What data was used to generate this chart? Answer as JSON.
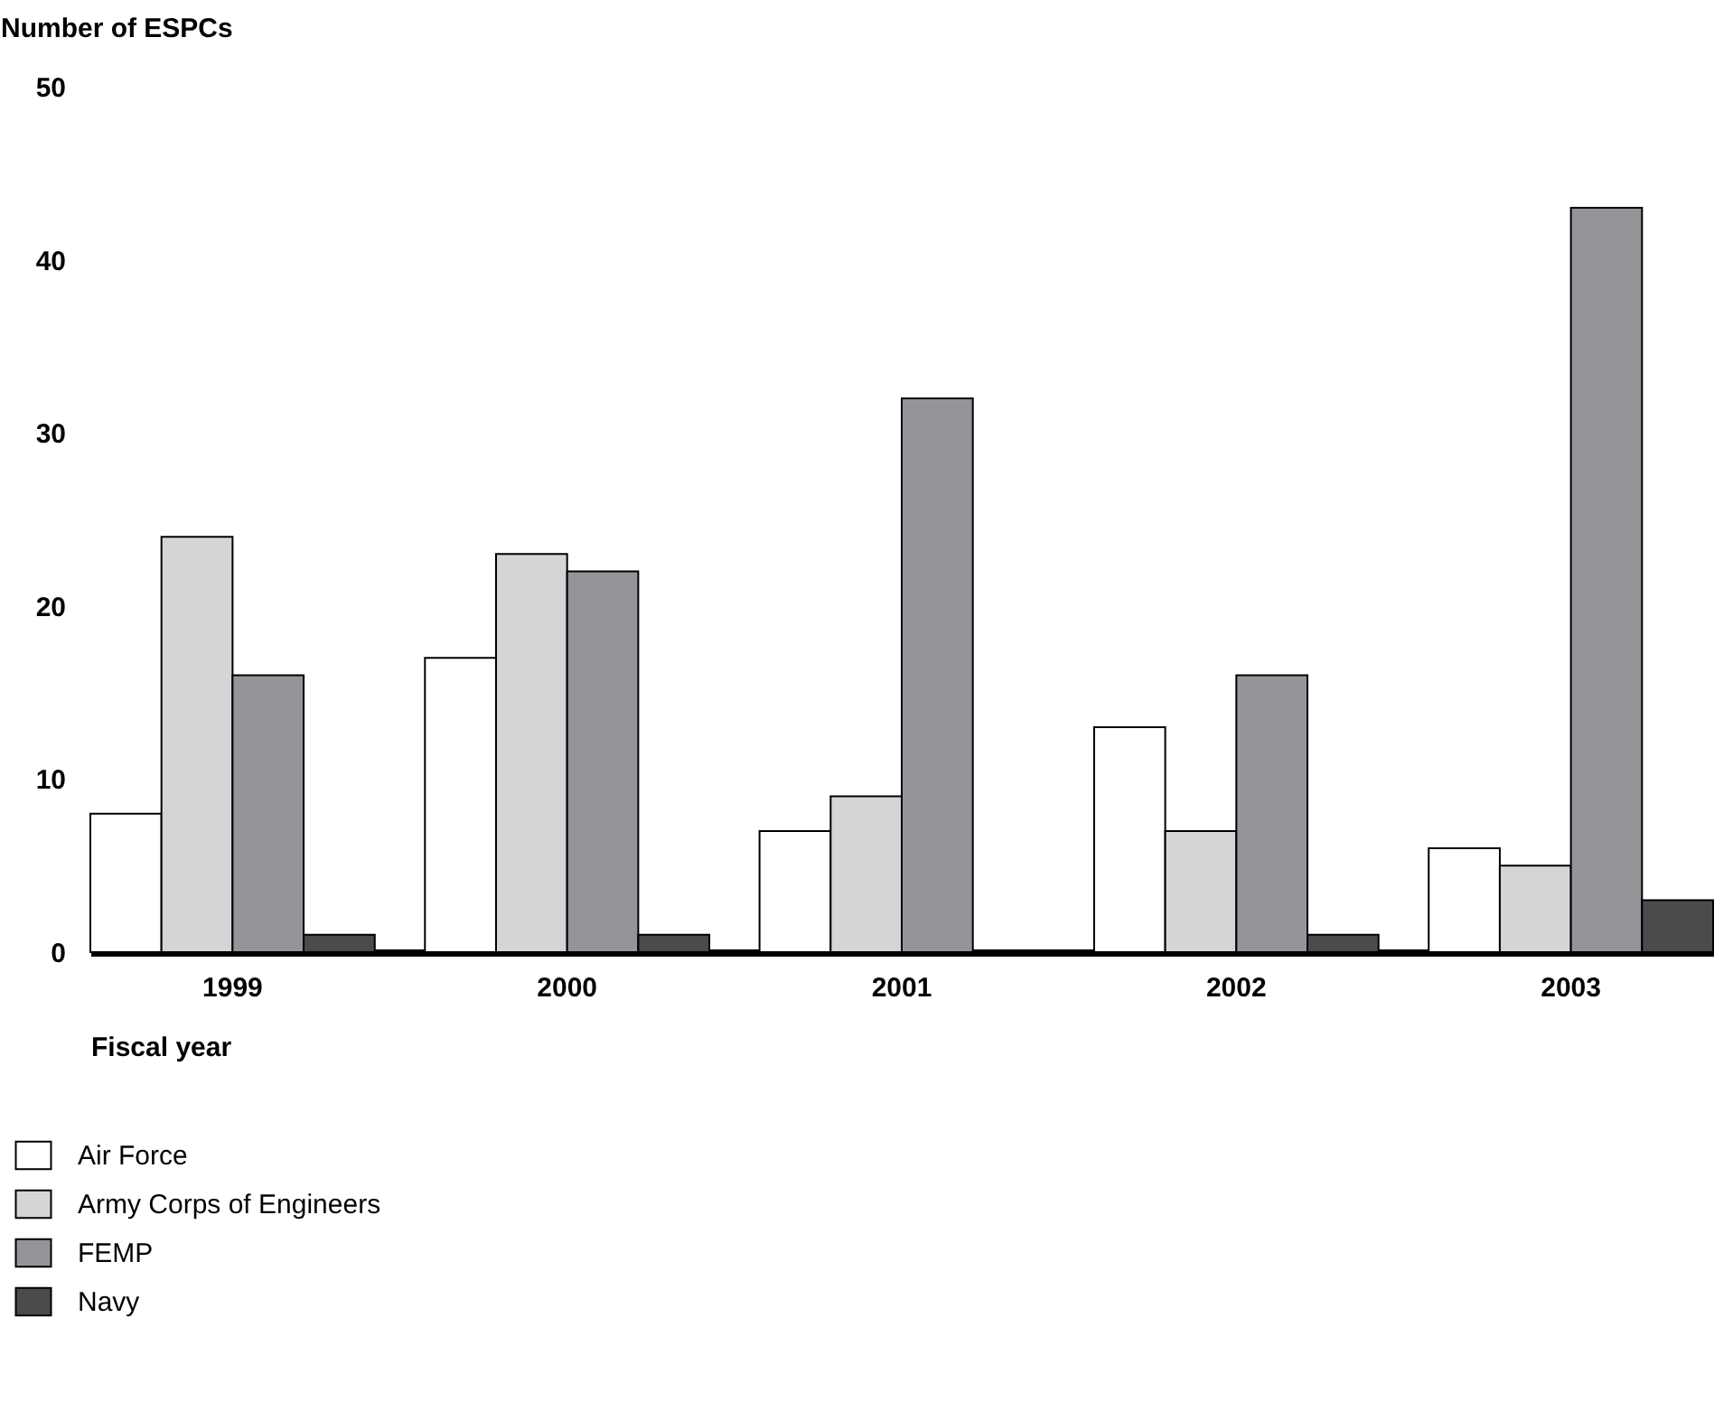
{
  "chart_data": {
    "type": "bar",
    "xlabel": "Fiscal year",
    "ylabel": "Number of ESPCs",
    "categories": [
      "1999",
      "2000",
      "2001",
      "2002",
      "2003"
    ],
    "series": [
      {
        "name": "Air Force",
        "color": "#ffffff",
        "values": [
          8,
          17,
          7,
          13,
          6
        ]
      },
      {
        "name": "Army Corps of Engineers",
        "color": "#d4d5d7",
        "values": [
          24,
          23,
          9,
          7,
          5
        ]
      },
      {
        "name": "FEMP",
        "color": "#939598",
        "values": [
          16,
          22,
          32,
          16,
          43
        ]
      },
      {
        "name": "Navy",
        "color": "#4a4b4d",
        "values": [
          1,
          1,
          0,
          1,
          3
        ]
      }
    ],
    "ylim": [
      0,
      50
    ],
    "yticks": [
      0,
      10,
      20,
      30,
      40,
      50
    ],
    "grid": false,
    "legend": "bottom"
  }
}
